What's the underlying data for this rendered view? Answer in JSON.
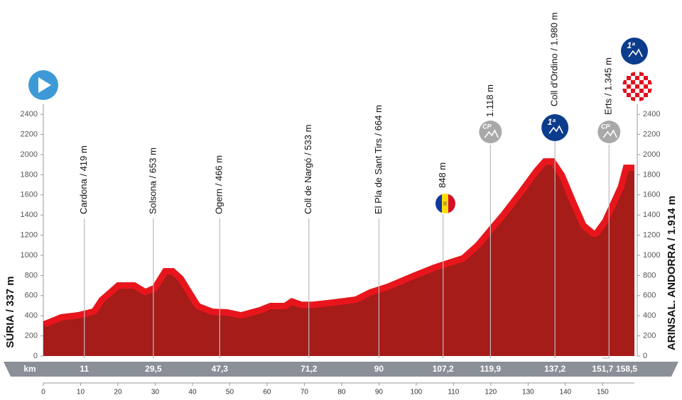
{
  "chart_data": {
    "type": "area",
    "x": [
      0,
      4.6,
      9.3,
      13.1,
      15,
      19.8,
      24.6,
      27.4,
      29.3,
      32.2,
      35,
      37.5,
      42,
      45.5,
      49.3,
      53,
      57.9,
      60.8,
      64.6,
      66.5,
      69.3,
      72.2,
      77.9,
      83.6,
      87.4,
      92.2,
      98.9,
      104.6,
      112.2,
      116,
      119.8,
      122.7,
      127.4,
      131.6,
      134.1,
      137,
      139.8,
      143,
      145.5,
      147.8,
      149.9,
      154.1,
      155.6,
      158.5
    ],
    "values": [
      345,
      415,
      436,
      470,
      577,
      732,
      732,
      670,
      700,
      873,
      873,
      790,
      520,
      470,
      465,
      436,
      485,
      528,
      528,
      577,
      540,
      540,
      563,
      591,
      661,
      718,
      823,
      908,
      999,
      1126,
      1295,
      1422,
      1647,
      1858,
      1963,
      1963,
      1809,
      1527,
      1316,
      1246,
      1351,
      1689,
      1900,
      1900
    ],
    "color": "#a51c19",
    "highlight_color": "#e8161c",
    "xlim": [
      0,
      158.5
    ],
    "ylim": [
      0,
      2500
    ],
    "yticks": [
      0,
      200,
      400,
      600,
      800,
      1000,
      1200,
      1400,
      1600,
      1800,
      2000,
      2200,
      2400
    ],
    "xticks": [
      0,
      10,
      20,
      30,
      40,
      50,
      60,
      70,
      80,
      90,
      100,
      110,
      120,
      130,
      140,
      150
    ],
    "start": "SÚRIA / 337 m",
    "finish": "ARINSAL. ANDORRA / 1.914 m",
    "km_label": "km",
    "waypoints": [
      {
        "km": 11,
        "name": "Cardona / 419 m"
      },
      {
        "km": {
          "value": 29.5,
          "label": "29,5"
        },
        "name": "Solsona / 653 m"
      },
      {
        "km": {
          "value": 47.3,
          "label": "47,3"
        },
        "name": "Ogern / 466 m"
      },
      {
        "km": {
          "value": 71.2,
          "label": "71,2"
        },
        "name": "Coll de Nargó / 533 m"
      },
      {
        "km": 90,
        "name": "El Pla de Sant Tirs / 664 m"
      },
      {
        "km": {
          "value": 107.2,
          "label": "107,2"
        },
        "name": "848 m"
      },
      {
        "km": {
          "value": 119.9,
          "label": "119,9"
        },
        "name": "1.118 m",
        "badge": "CP"
      },
      {
        "km": {
          "value": 137.2,
          "label": "137,2"
        },
        "name": "Coll d'Ordino / 1.980 m",
        "badge": "1ª"
      },
      {
        "km": {
          "value": 151.7,
          "label": "151,7"
        },
        "name": "Erts / 1.345 m",
        "badge": "CP"
      },
      {
        "km": {
          "value": 158.5,
          "label": "158,5"
        },
        "badge": "1ª"
      }
    ]
  }
}
